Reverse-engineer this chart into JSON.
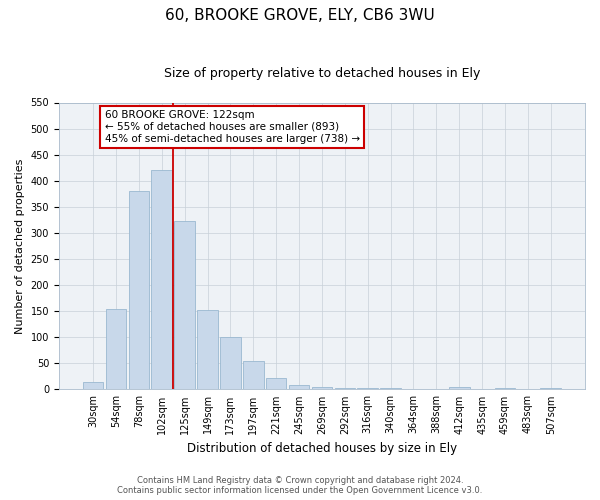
{
  "title": "60, BROOKE GROVE, ELY, CB6 3WU",
  "subtitle": "Size of property relative to detached houses in Ely",
  "xlabel": "Distribution of detached houses by size in Ely",
  "ylabel": "Number of detached properties",
  "bar_labels": [
    "30sqm",
    "54sqm",
    "78sqm",
    "102sqm",
    "125sqm",
    "149sqm",
    "173sqm",
    "197sqm",
    "221sqm",
    "245sqm",
    "269sqm",
    "292sqm",
    "316sqm",
    "340sqm",
    "364sqm",
    "388sqm",
    "412sqm",
    "435sqm",
    "459sqm",
    "483sqm",
    "507sqm"
  ],
  "bar_values": [
    15,
    155,
    380,
    420,
    322,
    153,
    100,
    55,
    21,
    8,
    5,
    3,
    2,
    2,
    1,
    0,
    4,
    1,
    3,
    1,
    3
  ],
  "bar_color": "#c8d8ea",
  "bar_edgecolor": "#9ab8d0",
  "vline_color": "#cc0000",
  "annotation_text": "60 BROOKE GROVE: 122sqm\n← 55% of detached houses are smaller (893)\n45% of semi-detached houses are larger (738) →",
  "annotation_box_facecolor": "#ffffff",
  "annotation_box_edgecolor": "#cc0000",
  "ylim": [
    0,
    550
  ],
  "yticks": [
    0,
    50,
    100,
    150,
    200,
    250,
    300,
    350,
    400,
    450,
    500,
    550
  ],
  "footer_line1": "Contains HM Land Registry data © Crown copyright and database right 2024.",
  "footer_line2": "Contains public sector information licensed under the Open Government Licence v3.0.",
  "title_fontsize": 11,
  "subtitle_fontsize": 9,
  "axis_label_fontsize": 8,
  "tick_fontsize": 7,
  "grid_color": "#c8d0d8",
  "bg_color": "#eef2f6"
}
